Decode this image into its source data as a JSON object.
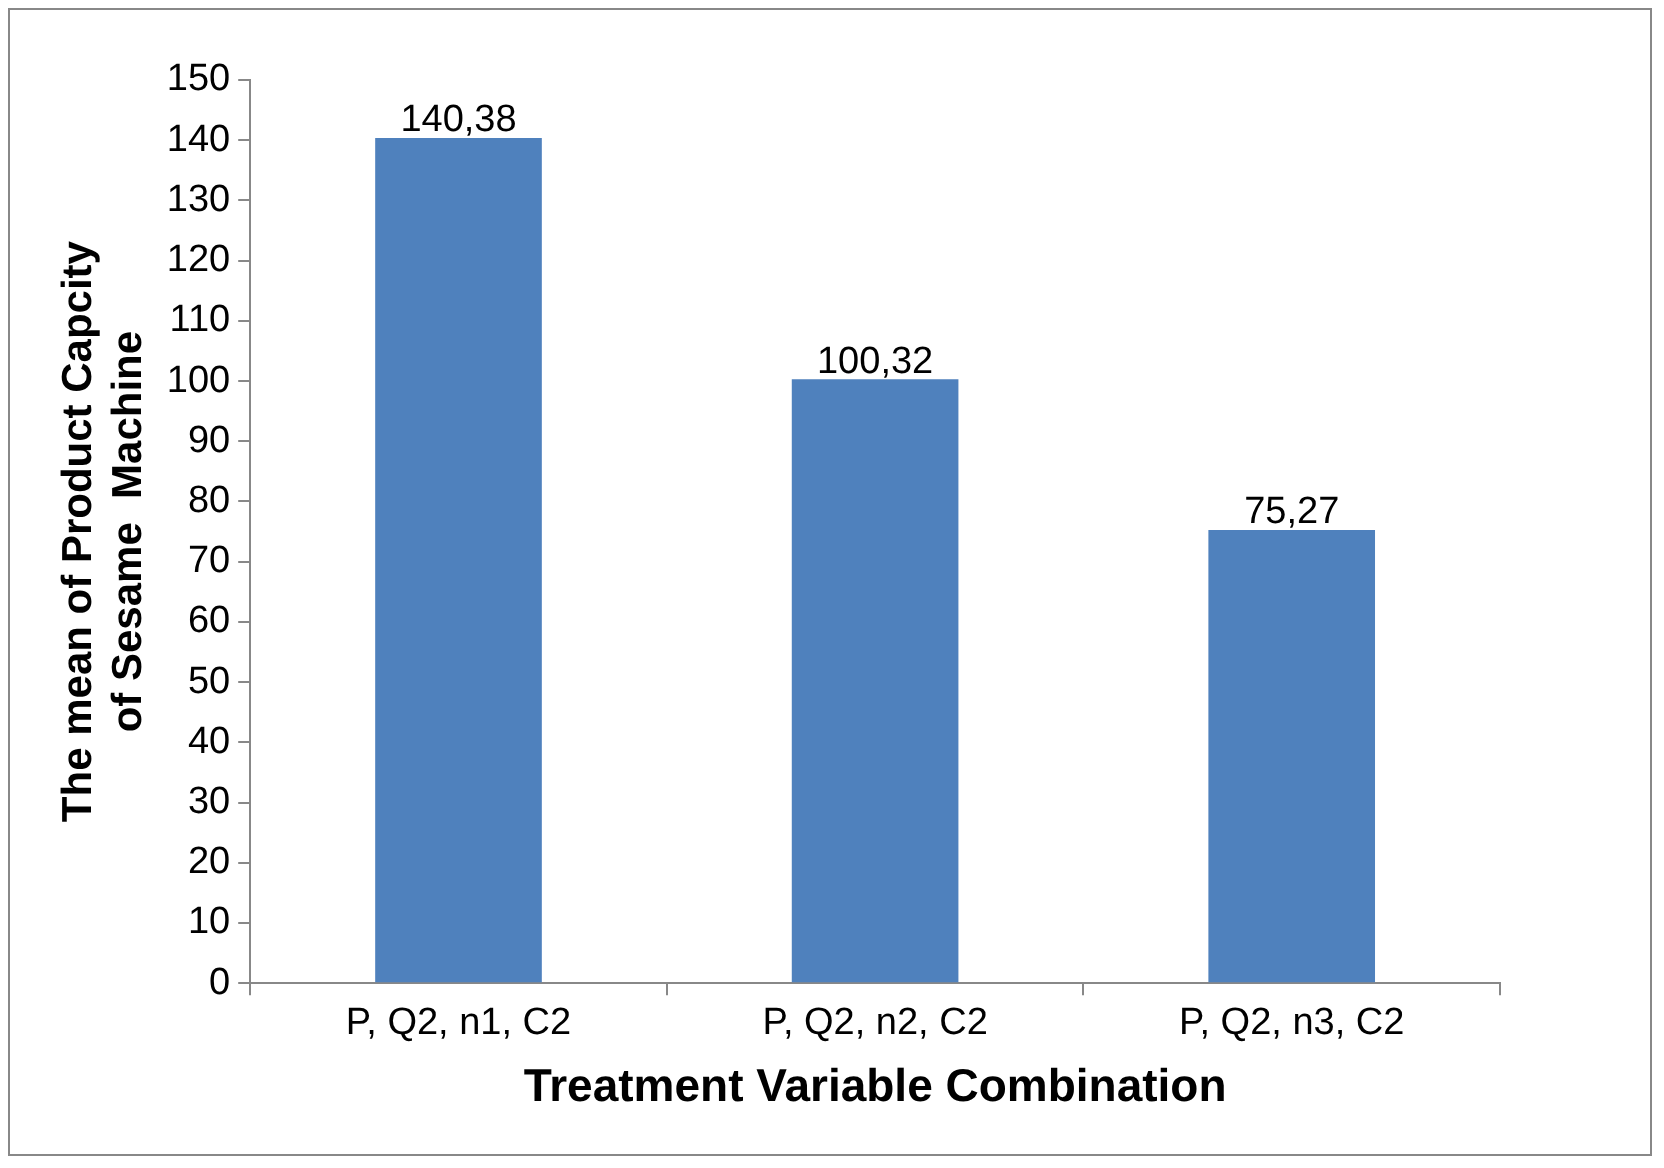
{
  "chart_data": {
    "type": "bar",
    "xlabel": "Treatment Variable Combination",
    "ylabel": "The mean of Product Capcity\nof Sesame  Machine",
    "categories": [
      "P, Q2, n1, C2",
      "P, Q2, n2, C2",
      "P, Q2, n3, C2"
    ],
    "values": [
      140.38,
      100.32,
      75.27
    ],
    "color": "#4f81bd",
    "value_labels": [
      "140,38",
      "100,32",
      "75,27"
    ],
    "ylim": [
      0,
      150
    ],
    "yticks": [
      0,
      10,
      20,
      30,
      40,
      50,
      60,
      70,
      80,
      90,
      100,
      110,
      120,
      130,
      140,
      150
    ],
    "grid": false,
    "legend": false
  }
}
